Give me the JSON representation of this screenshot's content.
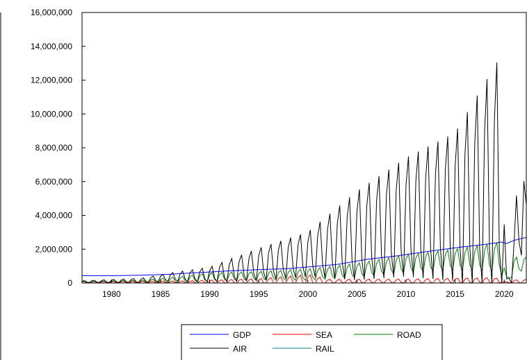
{
  "chart_data": {
    "type": "line",
    "title": "",
    "xlabel": "",
    "ylabel": "",
    "xlim": [
      1977.0,
      2022.25
    ],
    "ylim": [
      0,
      16000000
    ],
    "x_ticks": [
      1980,
      1985,
      1990,
      1995,
      2000,
      2005,
      2010,
      2015,
      2020
    ],
    "y_ticks": [
      0,
      2000000,
      4000000,
      6000000,
      8000000,
      10000000,
      12000000,
      14000000,
      16000000
    ],
    "y_tick_labels": [
      "0",
      "2,000,000",
      "4,000,000",
      "6,000,000",
      "8,000,000",
      "10,000,000",
      "12,000,000",
      "14,000,000",
      "16,000,000"
    ],
    "grid": false,
    "legend_position": "bottom-center",
    "frequency": "quarterly",
    "series": [
      {
        "name": "GDP",
        "color": "#0000ff",
        "x": [
          1977,
          1980,
          1983,
          1986,
          1989,
          1992,
          1995,
          1998,
          2000,
          2003,
          2006,
          2009,
          2012,
          2015,
          2018,
          2019.75,
          2020.25,
          2020.5,
          2021,
          2022.25
        ],
        "y": [
          430000,
          430000,
          460000,
          520000,
          620000,
          720000,
          790000,
          850000,
          950000,
          1100000,
          1400000,
          1600000,
          1850000,
          2080000,
          2280000,
          2420000,
          2330000,
          2400000,
          2520000,
          2700000
        ]
      },
      {
        "name": "SEA",
        "color": "#ff0000",
        "seasonal": {
          "x_start": 1977,
          "x_end": 2022.25,
          "phase": 0.5,
          "level": [
            [
              1977,
              40000
            ],
            [
              1988,
              60000
            ],
            [
              1995,
              100000
            ],
            [
              2000,
              180000
            ],
            [
              2001,
              100000
            ],
            [
              2010,
              110000
            ],
            [
              2019,
              150000
            ],
            [
              2020.25,
              40000
            ],
            [
              2021.5,
              100000
            ],
            [
              2022.25,
              100000
            ]
          ],
          "amplitude": [
            [
              1977,
              40000
            ],
            [
              1988,
              80000
            ],
            [
              1995,
              180000
            ],
            [
              1999,
              330000
            ],
            [
              2000.75,
              380000
            ],
            [
              2002,
              130000
            ],
            [
              2010,
              140000
            ],
            [
              2019,
              200000
            ],
            [
              2020.25,
              30000
            ],
            [
              2021.5,
              140000
            ],
            [
              2022.25,
              140000
            ]
          ]
        }
      },
      {
        "name": "ROAD",
        "color": "#008000",
        "seasonal": {
          "x_start": 1977,
          "x_end": 2022.25,
          "phase": 0.5,
          "level": [
            [
              1977,
              60000
            ],
            [
              1983,
              100000
            ],
            [
              1987,
              200000
            ],
            [
              1990,
              350000
            ],
            [
              1995,
              420000
            ],
            [
              2000,
              500000
            ],
            [
              2005,
              750000
            ],
            [
              2010,
              1150000
            ],
            [
              2015,
              1400000
            ],
            [
              2019.5,
              1550000
            ],
            [
              2020.25,
              200000
            ],
            [
              2021,
              1000000
            ],
            [
              2022.25,
              1200000
            ]
          ],
          "amplitude": [
            [
              1977,
              30000
            ],
            [
              1983,
              80000
            ],
            [
              1990,
              300000
            ],
            [
              1995,
              300000
            ],
            [
              2000,
              380000
            ],
            [
              2005,
              480000
            ],
            [
              2010,
              600000
            ],
            [
              2015,
              700000
            ],
            [
              2019.5,
              1000000
            ],
            [
              2020.25,
              200000
            ],
            [
              2021,
              600000
            ],
            [
              2022.25,
              400000
            ]
          ]
        }
      },
      {
        "name": "AIR",
        "color": "#000000",
        "seasonal": {
          "x_start": 1977,
          "x_end": 2022.25,
          "phase": 0.5,
          "level": [
            [
              1977,
              80000
            ],
            [
              1983,
              150000
            ],
            [
              1986,
              350000
            ],
            [
              1990,
              500000
            ],
            [
              1995,
              1100000
            ],
            [
              2000,
              1700000
            ],
            [
              2005,
              2800000
            ],
            [
              2010,
              3900000
            ],
            [
              2015,
              4500000
            ],
            [
              2019.5,
              6000000
            ],
            [
              2020.25,
              150000
            ],
            [
              2021,
              1500000
            ],
            [
              2021.75,
              5500000
            ],
            [
              2022.25,
              4200000
            ]
          ],
          "amplitude": [
            [
              1977,
              60000
            ],
            [
              1983,
              150000
            ],
            [
              1986,
              280000
            ],
            [
              1990,
              500000
            ],
            [
              1995,
              1100000
            ],
            [
              2000,
              1500000
            ],
            [
              2005,
              3000000
            ],
            [
              2010,
              4000000
            ],
            [
              2015,
              5000000
            ],
            [
              2019.5,
              8300000
            ],
            [
              2020.25,
              100000
            ],
            [
              2021,
              1800000
            ],
            [
              2021.75,
              4400000
            ],
            [
              2022.25,
              500000
            ]
          ]
        }
      },
      {
        "name": "RAIL",
        "color": "#008080",
        "x": [
          1977,
          2022.25
        ],
        "y": [
          0,
          0
        ]
      }
    ]
  }
}
